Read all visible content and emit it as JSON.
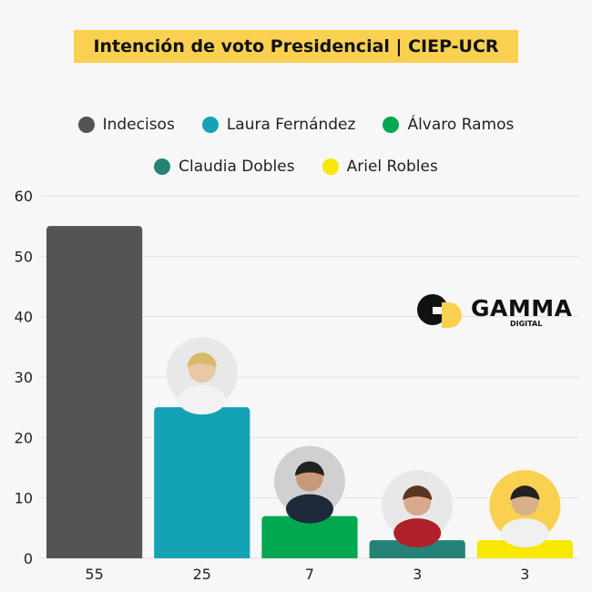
{
  "chart_data": {
    "type": "bar",
    "title": "Intención de voto Presidencial | CIEP-UCR",
    "categories": [
      "Indecisos",
      "Laura Fernández",
      "Álvaro Ramos",
      "Claudia Dobles",
      "Ariel Robles"
    ],
    "values": [
      55,
      25,
      7,
      3,
      3
    ],
    "value_labels": [
      "55",
      "25",
      "7",
      "3",
      "3"
    ],
    "colors": [
      "#545454",
      "#14a3b4",
      "#00a84f",
      "#248277",
      "#f7e800"
    ],
    "has_photo": [
      false,
      true,
      true,
      true,
      true
    ],
    "ylim": [
      0,
      60
    ],
    "yticks": [
      0,
      10,
      20,
      30,
      40,
      50,
      60
    ],
    "xlabel": "",
    "ylabel": "",
    "grid": true,
    "legend_position": "top"
  },
  "logo": {
    "brand": "GAMMA",
    "sub": "DIGITAL",
    "mark": "GD"
  }
}
